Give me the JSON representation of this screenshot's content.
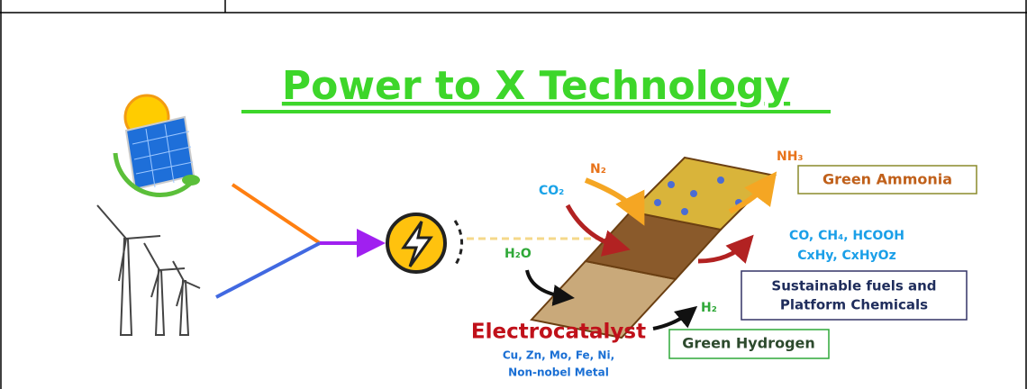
{
  "title": "Power to X Technology",
  "inputs": {
    "n2": "N₂",
    "co2": "CO₂",
    "h2o": "H₂O"
  },
  "outputs": {
    "nh3": "NH₃",
    "ammonia": "Green Ammonia",
    "carbon_products": [
      "CO, CH₄, HCOOH",
      "CxHy, CxHyOz"
    ],
    "fuels": [
      "Sustainable fuels and",
      "Platform Chemicals"
    ],
    "h2": "H₂",
    "hydrogen": "Green Hydrogen"
  },
  "catalyst": {
    "label": "Electrocatalyst",
    "metals": [
      "Cu, Zn, Mo, Fe, Ni,",
      "Non-nobel Metal"
    ]
  }
}
